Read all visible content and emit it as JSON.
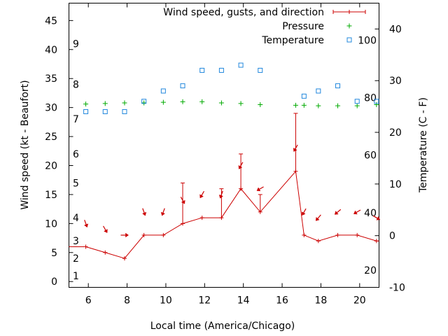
{
  "chart_data": {
    "type": "line",
    "xlabel": "Local time (America/Chicago)",
    "ylabel_left": "Wind speed (kt - Beaufort)",
    "ylabel_right": "Temperature (C - F)",
    "xlim": [
      5,
      21
    ],
    "ylim_left": [
      -1,
      48
    ],
    "ylim_right": [
      -10,
      45
    ],
    "x_ticks": [
      6,
      8,
      10,
      12,
      14,
      16,
      18,
      20
    ],
    "y_left_ticks": [
      0,
      5,
      10,
      15,
      20,
      25,
      30,
      35,
      40,
      45
    ],
    "y_right_ticks": [
      -10,
      0,
      10,
      20,
      30,
      40
    ],
    "beaufort_labels": [
      {
        "label": "1",
        "kt": 1
      },
      {
        "label": "2",
        "kt": 4
      },
      {
        "label": "3",
        "kt": 7
      },
      {
        "label": "4",
        "kt": 11
      },
      {
        "label": "5",
        "kt": 17
      },
      {
        "label": "6",
        "kt": 22
      },
      {
        "label": "7",
        "kt": 28
      },
      {
        "label": "8",
        "kt": 34
      },
      {
        "label": "9",
        "kt": 41
      }
    ],
    "fahrenheit_labels": [
      {
        "label": "20",
        "c": -6.7
      },
      {
        "label": "40",
        "c": 4.4
      },
      {
        "label": "60",
        "c": 15.6
      },
      {
        "label": "80",
        "c": 26.7
      },
      {
        "label": "100",
        "c": 37.8
      }
    ],
    "legend": {
      "position": "top-right",
      "entries": [
        "Wind speed, gusts, and direction",
        "Pressure",
        "Temperature"
      ]
    },
    "colors": {
      "wind": "#cc0000",
      "pressure": "#00aa00",
      "temperature": "#2288dd"
    },
    "series": [
      {
        "name": "Wind speed, gusts, and direction",
        "x": [
          5,
          5.87,
          6.87,
          7.87,
          8.87,
          9.87,
          10.87,
          11.87,
          12.87,
          13.87,
          14.87,
          16.7,
          17.13,
          17.87,
          18.87,
          19.87,
          20.87,
          21
        ],
        "y": [
          6,
          6,
          5,
          4,
          8,
          8,
          10,
          11,
          11,
          16,
          12,
          19,
          8,
          7,
          8,
          8,
          7,
          7
        ]
      },
      {
        "name": "gusts",
        "x": [
          10.87,
          12.87,
          13.87,
          14.87,
          16.7
        ],
        "y": [
          17,
          16,
          22,
          15,
          29
        ]
      },
      {
        "name": "direction",
        "x": [
          5.87,
          6.87,
          7.87,
          8.87,
          9.87,
          10.87,
          11.87,
          12.87,
          13.87,
          14.87,
          16.7,
          17.13,
          17.87,
          18.87,
          19.87,
          20.87
        ],
        "from_deg": [
          340,
          330,
          270,
          340,
          20,
          330,
          30,
          20,
          30,
          60,
          30,
          30,
          40,
          50,
          60,
          300
        ]
      },
      {
        "name": "Pressure",
        "x": [
          5.87,
          6.87,
          7.87,
          8.87,
          9.87,
          10.87,
          11.87,
          12.87,
          13.87,
          14.87,
          16.7,
          17.13,
          17.87,
          18.87,
          19.87,
          20.87
        ],
        "y": [
          30.6,
          30.7,
          30.8,
          30.8,
          30.9,
          31.0,
          31.0,
          30.8,
          30.7,
          30.5,
          30.4,
          30.4,
          30.3,
          30.3,
          30.3,
          30.5
        ]
      },
      {
        "name": "Temperature",
        "x": [
          5.87,
          6.87,
          7.87,
          8.87,
          9.87,
          10.87,
          11.87,
          12.87,
          13.87,
          14.87,
          17.13,
          17.87,
          18.87,
          19.87,
          20.87
        ],
        "y": [
          24.0,
          24.0,
          24.0,
          26.0,
          28.0,
          29.0,
          32.0,
          32.0,
          33.0,
          32.0,
          27.0,
          28.0,
          29.0,
          26.0,
          26.0
        ]
      }
    ]
  }
}
